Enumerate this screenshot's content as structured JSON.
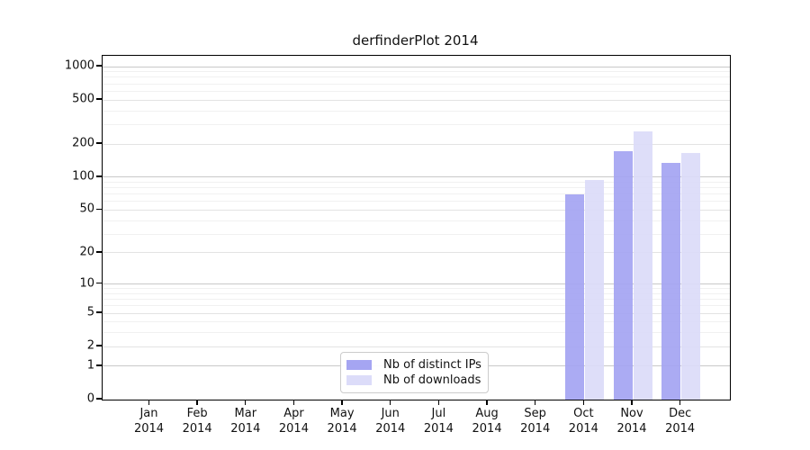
{
  "chart_data": {
    "type": "bar",
    "title": "derfinderPlot 2014",
    "categories": [
      "Jan",
      "Feb",
      "Mar",
      "Apr",
      "May",
      "Jun",
      "Jul",
      "Aug",
      "Sep",
      "Oct",
      "Nov",
      "Dec"
    ],
    "category_year": "2014",
    "series": [
      {
        "name": "Nb of distinct IPs",
        "color": "#a5a5f2",
        "values": [
          0,
          0,
          0,
          0,
          0,
          0,
          0,
          0,
          0,
          70,
          172,
          135
        ]
      },
      {
        "name": "Nb of downloads",
        "color": "#dcdcf9",
        "values": [
          0,
          0,
          0,
          0,
          0,
          0,
          0,
          0,
          0,
          94,
          260,
          167
        ]
      }
    ],
    "xlabel": "",
    "ylabel": "",
    "y_scale": "log10(value+1)",
    "y_axis_max_exponent": 3.098,
    "y_ticks": [
      0,
      1,
      2,
      5,
      10,
      20,
      50,
      100,
      200,
      500,
      1000
    ],
    "y_gridlines_mid": [
      2,
      5,
      20,
      50,
      200,
      500
    ],
    "y_gridlines_minor": [
      3,
      4,
      6,
      7,
      8,
      9,
      30,
      40,
      60,
      70,
      80,
      90,
      300,
      400,
      600,
      700,
      800,
      900
    ],
    "grid": "on",
    "legend_position": "bottom-center-inside",
    "colors": {
      "grid_major": "#c9c9c9",
      "grid_mid": "#e3e3e3",
      "grid_minor": "#f1f1f1",
      "axis": "#000000",
      "text": "#111111"
    }
  },
  "legend": {
    "items": [
      {
        "label": "Nb of distinct IPs"
      },
      {
        "label": "Nb of downloads"
      }
    ]
  }
}
